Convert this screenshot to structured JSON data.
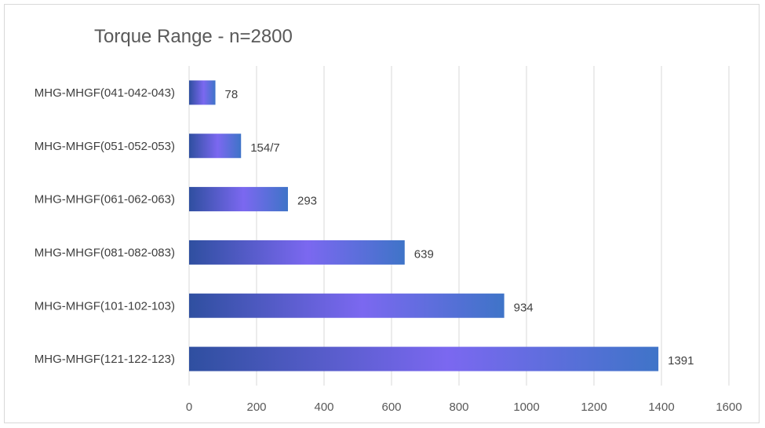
{
  "chart_data": {
    "type": "bar",
    "orientation": "horizontal",
    "title": "Torque Range - n=2800",
    "xlabel": "",
    "ylabel": "",
    "categories": [
      "MHG-MHGF(041-042-043)",
      "MHG-MHGF(051-052-053)",
      "MHG-MHGF(061-062-063)",
      "MHG-MHGF(081-082-083)",
      "MHG-MHGF(101-102-103)",
      "MHG-MHGF(121-122-123)"
    ],
    "values": [
      78,
      154,
      293,
      639,
      934,
      1391
    ],
    "data_labels": [
      "78",
      "154/7",
      "293",
      "639",
      "934",
      "1391"
    ],
    "xlim": [
      0,
      1600
    ],
    "x_ticks": [
      "0",
      "200",
      "400",
      "600",
      "800",
      "1000",
      "1200",
      "1400",
      "1600"
    ],
    "grid": true,
    "legend": "none",
    "colors": {
      "bar_gradient_start": "#2f4fa0",
      "bar_gradient_mid": "#7b68f0",
      "bar_gradient_end": "#3f74c8",
      "gridline": "#d9d9d9",
      "axis_text": "#595959"
    }
  }
}
